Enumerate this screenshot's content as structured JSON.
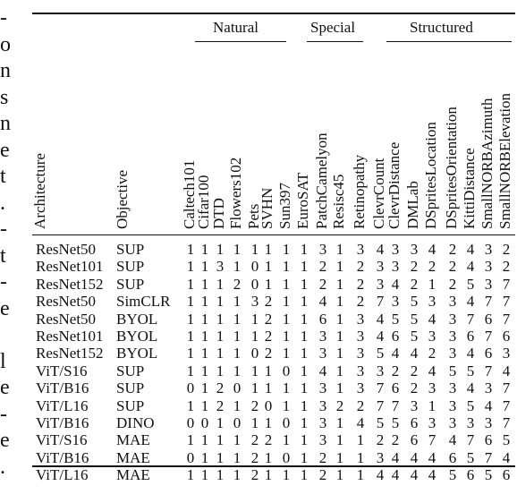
{
  "left_edge_fragments": [
    "-",
    "o",
    "n",
    "s",
    "n",
    "e",
    "t",
    ".",
    "-",
    "t",
    "-",
    "e",
    "",
    "l",
    "e",
    "-",
    "e",
    "."
  ],
  "groups": [
    {
      "label": "Natural"
    },
    {
      "label": "Special"
    },
    {
      "label": "Structured"
    }
  ],
  "headers": {
    "architecture": "Architecture",
    "objective": "Objective",
    "datasets": [
      "Caltech101",
      "Cifar100",
      "DTD",
      "Flowers102",
      "Pets",
      "SVHN",
      "Sun397",
      "EuroSAT",
      "PatchCamelyon",
      "Resisc45",
      "Retinopathy",
      "ClevrCount",
      "ClevrDistance",
      "DMLab",
      "DSpritesLocation",
      "DSpritesOrientation",
      "KittiDistance",
      "SmallNORBAzimuth",
      "SmallNORBElevation"
    ]
  },
  "rows": [
    {
      "arch": "ResNet50",
      "obj": "SUP",
      "vals": [
        "1",
        "1",
        "1",
        "1",
        "1",
        "1",
        "1",
        "1",
        "3",
        "1",
        "3",
        "4",
        "3",
        "3",
        "4",
        "2",
        "4",
        "3",
        "2"
      ]
    },
    {
      "arch": "ResNet101",
      "obj": "SUP",
      "vals": [
        "1",
        "1",
        "3",
        "1",
        "0",
        "1",
        "1",
        "1",
        "2",
        "1",
        "2",
        "3",
        "3",
        "2",
        "2",
        "2",
        "4",
        "3",
        "2"
      ]
    },
    {
      "arch": "ResNet152",
      "obj": "SUP",
      "vals": [
        "1",
        "1",
        "1",
        "2",
        "0",
        "1",
        "1",
        "1",
        "2",
        "1",
        "2",
        "3",
        "4",
        "2",
        "1",
        "2",
        "5",
        "3",
        "7"
      ]
    },
    {
      "arch": "ResNet50",
      "obj": "SimCLR",
      "vals": [
        "1",
        "1",
        "1",
        "1",
        "3",
        "2",
        "1",
        "1",
        "4",
        "1",
        "2",
        "7",
        "3",
        "5",
        "3",
        "3",
        "4",
        "7",
        "7"
      ]
    },
    {
      "arch": "ResNet50",
      "obj": "BYOL",
      "vals": [
        "1",
        "1",
        "1",
        "1",
        "1",
        "2",
        "1",
        "1",
        "6",
        "1",
        "3",
        "4",
        "5",
        "5",
        "4",
        "3",
        "7",
        "6",
        "7"
      ]
    },
    {
      "arch": "ResNet101",
      "obj": "BYOL",
      "vals": [
        "1",
        "1",
        "1",
        "1",
        "1",
        "2",
        "1",
        "1",
        "3",
        "1",
        "3",
        "4",
        "6",
        "5",
        "3",
        "3",
        "6",
        "7",
        "6"
      ]
    },
    {
      "arch": "ResNet152",
      "obj": "BYOL",
      "vals": [
        "1",
        "1",
        "1",
        "1",
        "0",
        "2",
        "1",
        "1",
        "3",
        "1",
        "3",
        "5",
        "4",
        "4",
        "2",
        "3",
        "4",
        "6",
        "3"
      ]
    },
    {
      "arch": "ViT/S16",
      "obj": "SUP",
      "vals": [
        "1",
        "1",
        "1",
        "1",
        "1",
        "1",
        "0",
        "1",
        "4",
        "1",
        "3",
        "3",
        "2",
        "2",
        "4",
        "5",
        "5",
        "7",
        "4"
      ]
    },
    {
      "arch": "ViT/B16",
      "obj": "SUP",
      "vals": [
        "0",
        "1",
        "2",
        "0",
        "1",
        "1",
        "1",
        "1",
        "3",
        "1",
        "3",
        "7",
        "6",
        "2",
        "3",
        "3",
        "4",
        "3",
        "7"
      ]
    },
    {
      "arch": "ViT/L16",
      "obj": "SUP",
      "vals": [
        "1",
        "1",
        "2",
        "1",
        "2",
        "0",
        "1",
        "1",
        "3",
        "2",
        "2",
        "7",
        "7",
        "3",
        "1",
        "3",
        "5",
        "4",
        "7"
      ]
    },
    {
      "arch": "ViT/B16",
      "obj": "DINO",
      "vals": [
        "0",
        "0",
        "1",
        "0",
        "1",
        "1",
        "0",
        "1",
        "3",
        "1",
        "4",
        "5",
        "5",
        "6",
        "3",
        "3",
        "3",
        "3",
        "7"
      ]
    },
    {
      "arch": "ViT/S16",
      "obj": "MAE",
      "vals": [
        "1",
        "1",
        "1",
        "1",
        "2",
        "2",
        "1",
        "1",
        "3",
        "1",
        "1",
        "2",
        "2",
        "6",
        "7",
        "4",
        "7",
        "6",
        "5"
      ]
    },
    {
      "arch": "ViT/B16",
      "obj": "MAE",
      "vals": [
        "0",
        "1",
        "1",
        "1",
        "2",
        "1",
        "0",
        "1",
        "2",
        "1",
        "1",
        "3",
        "4",
        "4",
        "4",
        "6",
        "5",
        "7",
        "4"
      ]
    },
    {
      "arch": "ViT/L16",
      "obj": "MAE",
      "vals": [
        "1",
        "1",
        "1",
        "1",
        "2",
        "1",
        "1",
        "1",
        "2",
        "1",
        "1",
        "4",
        "4",
        "4",
        "4",
        "5",
        "6",
        "5",
        "6"
      ]
    }
  ]
}
